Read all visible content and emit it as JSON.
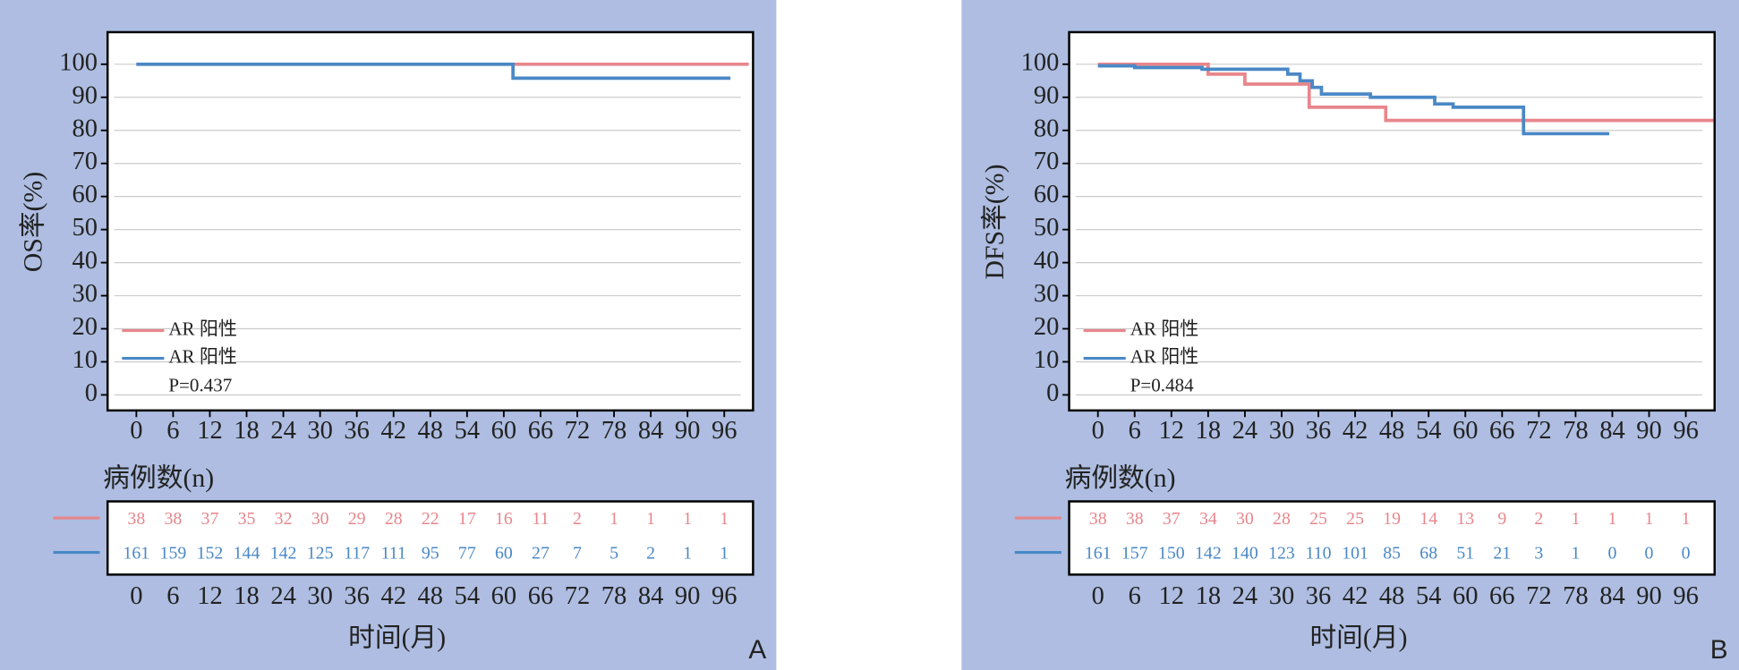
{
  "chart_data": [
    {
      "type": "line",
      "step": true,
      "ylabel": "OS率(%)",
      "xlabel": "时间(月)",
      "risk_table_title": "病例数(n)",
      "annotation": "P=0.437",
      "panel_label": "A",
      "xlim": [
        -4.7,
        100.7
      ],
      "ylim": [
        -4.7,
        109.7
      ],
      "xticks": [
        0,
        6,
        12,
        18,
        24,
        30,
        36,
        42,
        48,
        54,
        60,
        66,
        72,
        78,
        84,
        90,
        96
      ],
      "yticks": [
        0,
        10,
        20,
        30,
        40,
        50,
        60,
        70,
        80,
        90,
        100
      ],
      "grid": true,
      "legend": "lower left",
      "series": [
        {
          "name": "AR 阳性",
          "color": "#e8868c",
          "x": [
            0,
            100
          ],
          "values": [
            100,
            100
          ],
          "at_risk": [
            38,
            38,
            37,
            35,
            32,
            30,
            29,
            28,
            22,
            17,
            16,
            11,
            2,
            1,
            1,
            1,
            1
          ]
        },
        {
          "name": "AR 阳性",
          "color": "#4a88c6",
          "x": [
            0,
            61.5,
            97
          ],
          "values": [
            100,
            95.8,
            95.8
          ],
          "at_risk": [
            161,
            159,
            152,
            144,
            142,
            125,
            117,
            111,
            95,
            77,
            60,
            27,
            7,
            5,
            2,
            1,
            1
          ]
        }
      ]
    },
    {
      "type": "line",
      "step": true,
      "ylabel": "DFS率(%)",
      "xlabel": "时间(月)",
      "risk_table_title": "病例数(n)",
      "annotation": "P=0.484",
      "panel_label": "B",
      "xlim": [
        -4.7,
        100.7
      ],
      "ylim": [
        -4.7,
        109.7
      ],
      "xticks": [
        0,
        6,
        12,
        18,
        24,
        30,
        36,
        42,
        48,
        54,
        60,
        66,
        72,
        78,
        84,
        90,
        96
      ],
      "yticks": [
        0,
        10,
        20,
        30,
        40,
        50,
        60,
        70,
        80,
        90,
        100
      ],
      "grid": true,
      "legend": "lower left",
      "series": [
        {
          "name": "AR 阳性",
          "color": "#e8868c",
          "x": [
            0,
            18,
            24,
            34.5,
            47,
            100.5
          ],
          "values": [
            100,
            97,
            94,
            87,
            83,
            83
          ],
          "at_risk": [
            38,
            38,
            37,
            34,
            30,
            28,
            25,
            25,
            19,
            14,
            13,
            9,
            2,
            1,
            1,
            1,
            1
          ]
        },
        {
          "name": "AR 阳性",
          "color": "#4a88c6",
          "x": [
            0,
            6,
            17,
            31,
            33,
            35,
            36.5,
            44.5,
            55,
            58,
            69.5,
            83.5
          ],
          "values": [
            99.5,
            99,
            98.5,
            97,
            95,
            93,
            91,
            90,
            88,
            87,
            79,
            79
          ],
          "at_risk": [
            161,
            157,
            150,
            142,
            140,
            123,
            110,
            101,
            85,
            68,
            51,
            21,
            3,
            1,
            0,
            0,
            0
          ]
        }
      ]
    }
  ]
}
